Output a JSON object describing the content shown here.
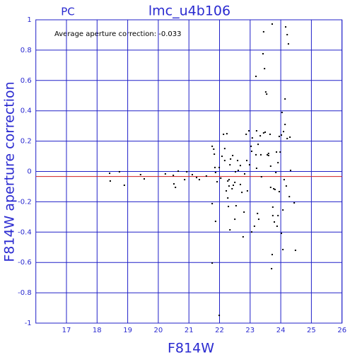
{
  "chart_data": {
    "type": "scatter",
    "title": "lmc_u4b106",
    "corner_label": "PC",
    "annotation": "Average aperture correction: -0.033",
    "average_line": -0.033,
    "x_label": "F814W",
    "y_label": "F814W aperture correction",
    "xlim": [
      16,
      26
    ],
    "ylim": [
      -1,
      1
    ],
    "xticks": [
      17,
      18,
      19,
      20,
      21,
      22,
      23,
      24,
      25,
      26
    ],
    "yticks": [
      -1,
      -0.8,
      -0.6,
      -0.4,
      -0.2,
      0,
      0.2,
      0.4,
      0.6,
      0.8,
      1
    ],
    "grid": true,
    "grid_color": "#2020c8",
    "average_color": "#d02020",
    "color": "#000000",
    "x": [
      18.41,
      18.43,
      18.73,
      18.89,
      19.42,
      19.54,
      20.23,
      20.49,
      20.51,
      20.56,
      20.65,
      20.86,
      20.93,
      21.11,
      21.25,
      21.34,
      21.57,
      21.76,
      21.81,
      21.83,
      21.85,
      21.87,
      21.92,
      21.76,
      21.87,
      21.76,
      21.99,
      22.04,
      22.08,
      22.13,
      22.17,
      22.17,
      22.22,
      22.24,
      22.27,
      22.27,
      22.31,
      22.31,
      22.34,
      22.36,
      22.41,
      22.43,
      22.45,
      22.5,
      22.52,
      22.54,
      22.59,
      22.61,
      22.68,
      22.68,
      22.73,
      22.8,
      22.82,
      22.87,
      22.89,
      22.91,
      22.96,
      22.98,
      23.03,
      23.05,
      23.07,
      23.19,
      23.21,
      23.21,
      23.24,
      23.28,
      23.33,
      23.35,
      23.37,
      23.42,
      23.44,
      23.47,
      23.51,
      23.54,
      23.56,
      23.6,
      23.65,
      23.67,
      23.72,
      23.74,
      23.77,
      23.81,
      23.84,
      23.86,
      23.88,
      23.91,
      23.95,
      23.98,
      24.02,
      24.04,
      24.07,
      24.09,
      24.14,
      24.16,
      24.18,
      24.21,
      24.25,
      24.28,
      24.32,
      24.44,
      24.48,
      21.99,
      22.34,
      22.29,
      23.72,
      23.7,
      23.79,
      23.91,
      23.74,
      23.67,
      23.95,
      24.02,
      24.07,
      24.11,
      24.14,
      24.21,
      24.3,
      23.19,
      23.26,
      23.14,
      22.77,
      22.5,
      23.05,
      23.44,
      23.49,
      23.6
    ],
    "values": [
      -0.012,
      -0.063,
      -0.002,
      -0.091,
      -0.021,
      -0.049,
      -0.016,
      -0.026,
      -0.082,
      -0.105,
      0.002,
      -0.054,
      -0.002,
      -0.021,
      -0.04,
      -0.054,
      -0.03,
      0.166,
      0.147,
      0.114,
      0.026,
      -0.007,
      -0.068,
      -0.212,
      -0.329,
      -0.604,
      0.026,
      -0.044,
      0.1,
      0.245,
      0.151,
      0.072,
      -0.128,
      0.249,
      -0.063,
      -0.175,
      -0.054,
      -0.096,
      0.044,
      0.082,
      -0.114,
      0.105,
      -0.091,
      -0.072,
      -0.002,
      -0.226,
      0.072,
      0.007,
      0.039,
      -0.086,
      -0.138,
      -0.268,
      -0.016,
      0.245,
      0.072,
      -0.128,
      0.268,
      0.044,
      0.166,
      0.133,
      0.221,
      0.627,
      0.021,
      0.268,
      -0.277,
      -0.315,
      0.235,
      0.11,
      -0.035,
      0.776,
      0.921,
      0.678,
      0.524,
      0.51,
      0.11,
      0.119,
      0.245,
      -0.105,
      0.972,
      -0.235,
      -0.114,
      -0.119,
      -0.007,
      0.128,
      -0.361,
      0.058,
      0.231,
      0.128,
      0.24,
      0.389,
      -0.254,
      0.263,
      0.478,
      0.953,
      -0.096,
      0.902,
      0.841,
      -0.166,
      0.007,
      -0.207,
      -0.52,
      -0.949,
      -0.385,
      -0.231,
      -0.548,
      -0.641,
      -0.333,
      -0.291,
      -0.291,
      0.035,
      -0.133,
      -0.408,
      -0.515,
      -0.054,
      0.31,
      0.217,
      0.226,
      0.11,
      0.179,
      -0.361,
      -0.431,
      -0.315,
      -0.399,
      0.254,
      0.259,
      0.105
    ]
  }
}
